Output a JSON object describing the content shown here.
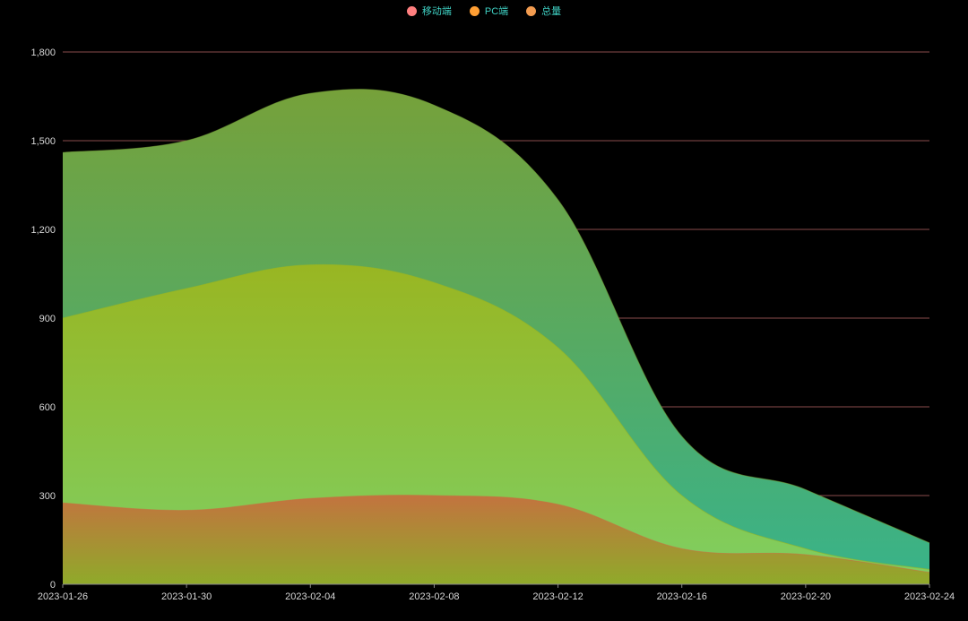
{
  "chart_data": {
    "type": "area",
    "legend": {
      "placement": "top-center",
      "items": [
        {
          "name": "移动端",
          "color": "#ff7f7f"
        },
        {
          "name": "PC端",
          "color": "#ff9f34"
        },
        {
          "name": "总量",
          "color": "#f39c50"
        }
      ]
    },
    "x": [
      "2023-01-26",
      "2023-01-30",
      "2023-02-04",
      "2023-02-08",
      "2023-02-12",
      "2023-02-16",
      "2023-02-20",
      "2023-02-24"
    ],
    "xticks": [
      "2023-01-26",
      "2023-01-30",
      "2023-02-04",
      "2023-02-08",
      "2023-02-12",
      "2023-02-16",
      "2023-02-20",
      "2023-02-24"
    ],
    "yticks": [
      "0",
      "300",
      "600",
      "900",
      "1,200",
      "1,500",
      "1,800"
    ],
    "ylim": [
      0,
      1800
    ],
    "grid": true,
    "series": [
      {
        "name": "移动端",
        "values": [
          275,
          250,
          290,
          300,
          270,
          120,
          100,
          40
        ],
        "fill_top": "#c3733f",
        "fill_bottom": "#8faa2a"
      },
      {
        "name": "PC端",
        "values": [
          900,
          1000,
          1080,
          1020,
          800,
          300,
          120,
          50
        ],
        "fill_top": "#99b622",
        "fill_bottom": "#7ecf63"
      },
      {
        "name": "总量",
        "values": [
          1460,
          1500,
          1660,
          1620,
          1300,
          500,
          320,
          140
        ],
        "fill_top": "#76a13a",
        "fill_bottom": "#38b38a"
      }
    ]
  }
}
